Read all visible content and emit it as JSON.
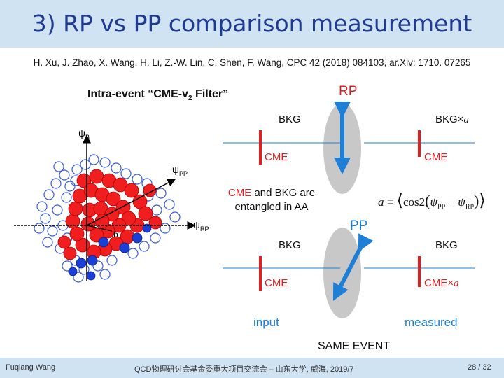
{
  "slide": {
    "title": "3) RP vs PP comparison measurement",
    "reference": "H. Xu, J. Zhao, X. Wang, H. Li, Z.-W. Lin, C. Shen, F. Wang, CPC 42 (2018) 084103, ar.Xiv: 1710. 07265",
    "filter_label": "Intra-event “CME-v",
    "filter_sub": "2",
    "filter_label_end": " Filter”",
    "rp_label": "RP",
    "pp_label": "PP",
    "bkg_left_top": "BKG",
    "bkg_right_top": "BKG×",
    "a_sym": "a",
    "cme_left_top": "CME",
    "cme_right_top": "CME",
    "entangled_line1_cme": "CME",
    "entangled_line1_rest": " and BKG are",
    "entangled_line2": "entangled in AA",
    "formula_a": "a",
    "formula_eq": "≡",
    "formula_cos": "cos2",
    "formula_psi_pp": "ψ",
    "formula_pp_sub": "PP",
    "formula_minus": "−",
    "formula_psi_rp": "ψ",
    "formula_rp_sub": "RP",
    "bkg_left_bottom": "BKG",
    "bkg_right_bottom": "BKG",
    "cme_left_bottom": "CME",
    "cme_right_bottom": "CME×",
    "input_label": "input",
    "measured_label": "measured",
    "same_event": "SAME EVENT",
    "axis_psi_b": "ψ",
    "axis_b_sub": "B",
    "axis_psi_pp": "ψ",
    "axis_pp_sub": "PP",
    "axis_psi_rp": "ψ",
    "axis_rp_sub": "RP",
    "axis_b": "b"
  },
  "footer": {
    "author": "Fuqiang Wang",
    "meeting": "QCD物理研讨会基金委重大项目交流会 – 山东大学, 威海, 2019/7",
    "page": "28 / 32"
  },
  "colors": {
    "title": "#1f3a93",
    "accent_blue": "#1e7fd6",
    "red": "#e02020",
    "dark_red": "#a01010",
    "ellipse": "#c8c8c8",
    "bar_bg": "#cfe3f3"
  }
}
